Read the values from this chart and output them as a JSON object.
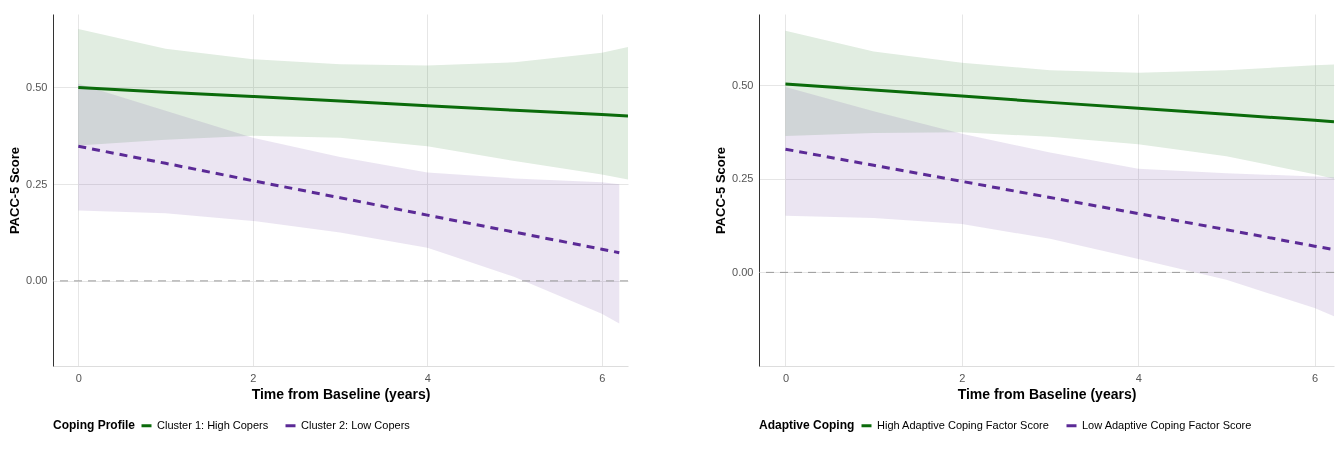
{
  "chart_data": [
    {
      "type": "line",
      "xlabel": "Time from Baseline (years)",
      "ylabel": "PACC-5 Score",
      "legend_title": "Coping Profile",
      "legend": "bottom",
      "grid": true,
      "xlim": [
        -0.29,
        6.3
      ],
      "xticks": [
        0,
        2,
        4,
        6
      ],
      "ylim": [
        -0.22,
        0.69
      ],
      "yticks": [
        {
          "value": 0,
          "label": "0.00"
        },
        {
          "value": 0.25,
          "label": "0.25"
        },
        {
          "value": 0.5,
          "label": "0.50"
        }
      ],
      "ref_lines": [
        {
          "axis": "y",
          "value": 0,
          "line_style": "dashed",
          "color": "#9a9a9a"
        }
      ],
      "series": [
        {
          "name": "Cluster 1: High Copers",
          "color": "#0b6b0b",
          "line_style": "solid",
          "x": [
            0,
            1,
            2,
            3,
            4,
            5,
            6,
            6.3
          ],
          "values": [
            0.5,
            0.488,
            0.477,
            0.465,
            0.453,
            0.441,
            0.43,
            0.426
          ],
          "lower": [
            0.35,
            0.365,
            0.375,
            0.37,
            0.348,
            0.31,
            0.275,
            0.262
          ],
          "upper": [
            0.651,
            0.6,
            0.573,
            0.56,
            0.557,
            0.565,
            0.59,
            0.605
          ]
        },
        {
          "name": "Cluster 2: Low Copers",
          "color": "#5b2a96",
          "line_style": "dashed",
          "x": [
            0,
            1,
            2,
            3,
            4,
            5,
            6,
            6.2
          ],
          "values": [
            0.348,
            0.304,
            0.259,
            0.215,
            0.17,
            0.126,
            0.082,
            0.073
          ],
          "lower": [
            0.182,
            0.175,
            0.155,
            0.125,
            0.086,
            0.01,
            -0.085,
            -0.11
          ],
          "upper": [
            0.51,
            0.44,
            0.37,
            0.32,
            0.28,
            0.265,
            0.255,
            0.25
          ]
        }
      ]
    },
    {
      "type": "line",
      "xlabel": "Time from Baseline (years)",
      "ylabel": "PACC-5 Score",
      "legend_title": "Adaptive Coping",
      "legend": "bottom",
      "grid": true,
      "xlim": [
        -0.3,
        6.22
      ],
      "xticks": [
        0,
        2,
        4,
        6
      ],
      "ylim": [
        -0.25,
        0.69
      ],
      "yticks": [
        {
          "value": 0,
          "label": "0.00"
        },
        {
          "value": 0.25,
          "label": "0.25"
        },
        {
          "value": 0.5,
          "label": "0.50"
        }
      ],
      "ref_lines": [
        {
          "axis": "y",
          "value": 0,
          "line_style": "dashed",
          "color": "#9a9a9a"
        }
      ],
      "series": [
        {
          "name": "High Adaptive Coping Factor Score",
          "color": "#0b6b0b",
          "line_style": "solid",
          "x": [
            0,
            1,
            2,
            3,
            4,
            5,
            6,
            6.22
          ],
          "values": [
            0.503,
            0.487,
            0.471,
            0.454,
            0.438,
            0.422,
            0.406,
            0.402
          ],
          "lower": [
            0.364,
            0.372,
            0.374,
            0.362,
            0.342,
            0.31,
            0.262,
            0.25
          ],
          "upper": [
            0.645,
            0.59,
            0.56,
            0.54,
            0.533,
            0.54,
            0.553,
            0.555
          ]
        },
        {
          "name": "Low Adaptive Coping Factor Score",
          "color": "#5b2a96",
          "line_style": "dashed",
          "x": [
            0,
            1,
            2,
            3,
            4,
            5,
            6,
            6.22
          ],
          "values": [
            0.329,
            0.286,
            0.243,
            0.2,
            0.157,
            0.114,
            0.07,
            0.061
          ],
          "lower": [
            0.151,
            0.145,
            0.129,
            0.09,
            0.036,
            -0.02,
            -0.095,
            -0.117
          ],
          "upper": [
            0.495,
            0.43,
            0.37,
            0.32,
            0.277,
            0.265,
            0.256,
            0.254
          ]
        }
      ]
    }
  ]
}
